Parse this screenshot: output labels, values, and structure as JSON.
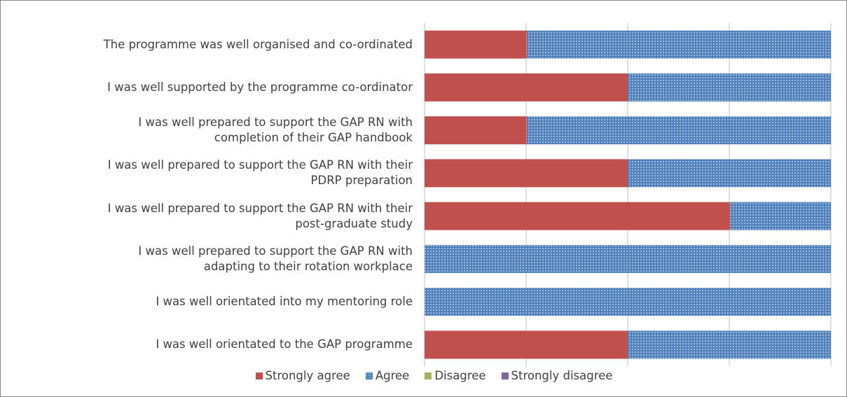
{
  "chart_data": {
    "type": "stacked-barh",
    "categories": [
      "The programme was well organised and co-ordinated",
      "I was well supported by the programme co-ordinator",
      "I was well prepared to support the GAP RN with\ncompletion of their GAP handbook",
      "I was well prepared to support the GAP RN with their\nPDRP preparation",
      "I was well prepared to support the GAP RN with their\npost-graduate study",
      "I was well prepared to support the GAP RN with\nadapting to their rotation workplace",
      "I was well orientated into my mentoring role",
      "I was well orientated to the GAP programme"
    ],
    "series": [
      {
        "name": "Strongly agree",
        "color": "#c0504d",
        "values": [
          25,
          50,
          25,
          50,
          75,
          0,
          0,
          50
        ]
      },
      {
        "name": "Agree",
        "color": "#4f81bd",
        "pattern": "dots",
        "values": [
          75,
          50,
          75,
          50,
          25,
          100,
          100,
          50
        ]
      },
      {
        "name": "Disagree",
        "color": "#9bbb59",
        "values": [
          0,
          0,
          0,
          0,
          0,
          0,
          0,
          0
        ]
      },
      {
        "name": "Strongly disagree",
        "color": "#8064a2",
        "values": [
          0,
          0,
          0,
          0,
          0,
          0,
          0,
          0
        ]
      }
    ],
    "xlim": [
      0,
      100
    ],
    "xticks": [
      0,
      25,
      50,
      75,
      100
    ],
    "grid": true,
    "legend": "bottom"
  }
}
